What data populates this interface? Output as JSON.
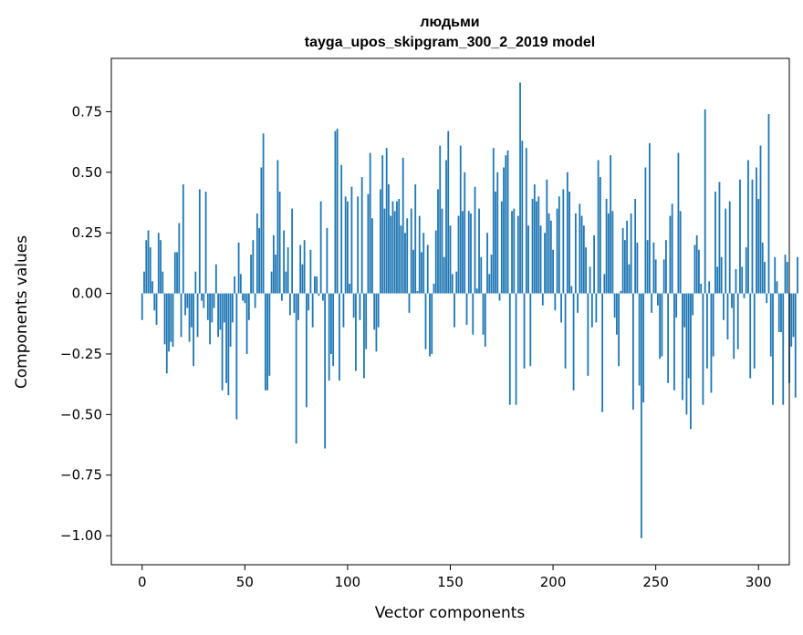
{
  "chart_data": {
    "type": "bar",
    "title": "людьми",
    "subtitle": "tayga_upos_skipgram_300_2_2019 model",
    "xlabel": "Vector components",
    "ylabel": "Components values",
    "xlim": [
      -15,
      315
    ],
    "ylim": [
      -1.12,
      0.97
    ],
    "xticks": [
      0,
      50,
      100,
      150,
      200,
      250,
      300
    ],
    "yticks": [
      -1.0,
      -0.75,
      -0.5,
      -0.25,
      0.0,
      0.25,
      0.5,
      0.75
    ],
    "ytick_labels": [
      "−1.00",
      "−0.75",
      "−0.50",
      "−0.25",
      "0.00",
      "0.25",
      "0.50",
      "0.75"
    ],
    "bar_color": "#1f77b4",
    "grid": false,
    "legend": "none",
    "values": [
      -0.11,
      0.09,
      0.22,
      0.26,
      0.19,
      0.05,
      -0.07,
      -0.13,
      0.25,
      0.22,
      0.09,
      -0.21,
      -0.33,
      -0.24,
      -0.2,
      -0.22,
      0.17,
      0.17,
      0.29,
      -0.18,
      0.45,
      -0.09,
      -0.06,
      -0.2,
      -0.14,
      -0.3,
      0.09,
      -0.18,
      0.43,
      -0.03,
      -0.06,
      0.42,
      -0.11,
      -0.21,
      -0.12,
      -0.06,
      0.12,
      -0.18,
      -0.15,
      -0.4,
      -0.12,
      -0.37,
      -0.42,
      -0.22,
      -0.12,
      0.07,
      -0.52,
      0.21,
      0.08,
      -0.03,
      -0.04,
      -0.25,
      -0.11,
      0.16,
      0.22,
      -0.06,
      0.33,
      0.27,
      0.52,
      0.66,
      -0.4,
      -0.4,
      -0.34,
      0.09,
      0.24,
      0.16,
      0.55,
      0.42,
      -0.03,
      0.26,
      0.09,
      0.19,
      -0.09,
      0.35,
      -0.08,
      -0.62,
      -0.11,
      0.2,
      0.12,
      0.22,
      -0.47,
      -0.07,
      0.18,
      -0.14,
      0.07,
      0.07,
      -0.01,
      0.38,
      -0.03,
      -0.64,
      0.27,
      -0.36,
      -0.25,
      -0.3,
      0.67,
      0.68,
      -0.36,
      0.53,
      -0.14,
      0.4,
      0.38,
      0.04,
      0.44,
      -0.1,
      -0.32,
      0.4,
      -0.11,
      0.48,
      -0.35,
      -0.23,
      0.41,
      0.58,
      0.31,
      -0.15,
      -0.24,
      -0.14,
      0.43,
      0.57,
      0.35,
      0.6,
      0.45,
      0.32,
      0.38,
      0.34,
      0.38,
      0.39,
      0.28,
      0.56,
      0.25,
      0.31,
      -0.08,
      0.35,
      0.18,
      0.45,
      0.01,
      0.32,
      0.17,
      0.25,
      -0.23,
      0.2,
      -0.26,
      -0.25,
      0.04,
      0.26,
      0.43,
      0.61,
      0.35,
      0.15,
      0.55,
      0.67,
      0.28,
      0.08,
      -0.14,
      0.09,
      0.32,
      0.61,
      0.34,
      0.5,
      -0.13,
      0.34,
      0.33,
      -0.17,
      0.44,
      0.02,
      0.35,
      0.15,
      -0.17,
      -0.22,
      0.25,
      0.08,
      0.16,
      0.6,
      0.42,
      0.5,
      -0.03,
      0.38,
      0.52,
      0.57,
      0.59,
      -0.46,
      0.34,
      0.35,
      -0.46,
      0.32,
      0.87,
      0.63,
      -0.31,
      0.6,
      0.28,
      -0.3,
      0.39,
      0.45,
      0.38,
      0.4,
      0.28,
      -0.05,
      0.25,
      0.47,
      0.33,
      0.3,
      0.18,
      -0.07,
      0.35,
      0.4,
      -0.12,
      0.43,
      -0.31,
      0.5,
      0.42,
      0.03,
      -0.4,
      0.33,
      -0.08,
      0.37,
      0.32,
      0.28,
      0.19,
      -0.34,
      0.11,
      -0.14,
      0.24,
      -0.12,
      0.55,
      0.48,
      -0.49,
      0.08,
      0.39,
      0.33,
      0.57,
      0.34,
      -0.1,
      -0.17,
      -0.3,
      0.01,
      0.27,
      0.22,
      0.3,
      0.12,
      0.33,
      -0.48,
      0.39,
      0.21,
      -0.38,
      -1.01,
      -0.45,
      0.52,
      0.22,
      0.62,
      -0.08,
      0.21,
      0.14,
      -0.05,
      -0.27,
      -0.26,
      0.14,
      0.22,
      -0.37,
      0.32,
      0.37,
      -0.4,
      -0.1,
      0.58,
      0.34,
      -0.44,
      -0.14,
      -0.5,
      -0.35,
      -0.56,
      -0.09,
      0.2,
      0.24,
      0.18,
      0.04,
      -0.46,
      0.76,
      -0.31,
      0.05,
      -0.41,
      -0.26,
      0.42,
      0.11,
      0.46,
      0.15,
      -0.11,
      0.35,
      -0.19,
      0.38,
      -0.06,
      -0.27,
      0.1,
      -0.23,
      0.47,
      0.11,
      -0.02,
      0.19,
      0.55,
      -0.35,
      0.47,
      -0.31,
      0.52,
      0.39,
      0.61,
      0.21,
      0.13,
      -0.04,
      0.74,
      -0.26,
      -0.46,
      0.15,
      0.05,
      -0.16,
      -0.16,
      -0.46,
      0.16,
      0.13,
      -0.37,
      -0.22,
      -0.18,
      -0.43,
      0.15
    ]
  }
}
